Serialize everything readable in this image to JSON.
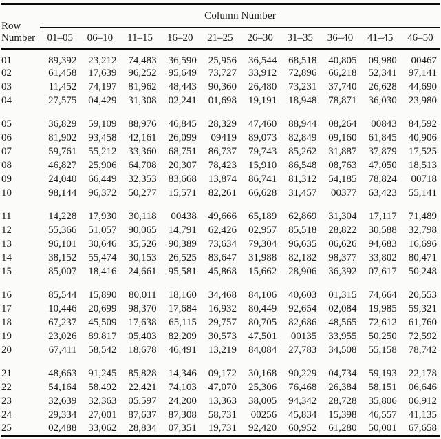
{
  "table": {
    "group_label": "Column Number",
    "row_header_line1": "Row",
    "row_header_line2": "Number",
    "columns": [
      "01–05",
      "06–10",
      "11–15",
      "16–20",
      "21–25",
      "26–30",
      "31–35",
      "36–40",
      "41–45",
      "46–50"
    ],
    "groups": [
      {
        "rows": [
          {
            "row": "01",
            "values": [
              "89,392",
              "23,212",
              "74,483",
              "36,590",
              "25,956",
              "36,544",
              "68,518",
              "40,805",
              "09,980",
              "00467"
            ]
          },
          {
            "row": "02",
            "values": [
              "61,458",
              "17,639",
              "96,252",
              "95,649",
              "73,727",
              "33,912",
              "72,896",
              "66,218",
              "52,341",
              "97,141"
            ]
          },
          {
            "row": "03",
            "values": [
              "11,452",
              "74,197",
              "81,962",
              "48,443",
              "90,360",
              "26,480",
              "73,231",
              "37,740",
              "26,628",
              "44,690"
            ]
          },
          {
            "row": "04",
            "values": [
              "27,575",
              "04,429",
              "31,308",
              "02,241",
              "01,698",
              "19,191",
              "18,948",
              "78,871",
              "36,030",
              "23,980"
            ]
          }
        ]
      },
      {
        "rows": [
          {
            "row": "05",
            "values": [
              "36,829",
              "59,109",
              "88,976",
              "46,845",
              "28,329",
              "47,460",
              "88,944",
              "08,264",
              "00843",
              "84,592"
            ]
          },
          {
            "row": "06",
            "values": [
              "81,902",
              "93,458",
              "42,161",
              "26,099",
              "09419",
              "89,073",
              "82,849",
              "09,160",
              "61,845",
              "40,906"
            ]
          },
          {
            "row": "07",
            "values": [
              "59,761",
              "55,212",
              "33,360",
              "68,751",
              "86,737",
              "79,743",
              "85,262",
              "31,887",
              "37,879",
              "17,525"
            ]
          },
          {
            "row": "08",
            "values": [
              "46,827",
              "25,906",
              "64,708",
              "20,307",
              "78,423",
              "15,910",
              "86,548",
              "08,763",
              "47,050",
              "18,513"
            ]
          },
          {
            "row": "09",
            "values": [
              "24,040",
              "66,449",
              "32,353",
              "83,668",
              "13,874",
              "86,741",
              "81,312",
              "54,185",
              "78,824",
              "00718"
            ]
          },
          {
            "row": "10",
            "values": [
              "98,144",
              "96,372",
              "50,277",
              "15,571",
              "82,261",
              "66,628",
              "31,457",
              "00377",
              "63,423",
              "55,141"
            ]
          }
        ]
      },
      {
        "rows": [
          {
            "row": "11",
            "values": [
              "14,228",
              "17,930",
              "30,118",
              "00438",
              "49,666",
              "65,189",
              "62,869",
              "31,304",
              "17,117",
              "71,489"
            ]
          },
          {
            "row": "12",
            "values": [
              "55,366",
              "51,057",
              "90,065",
              "14,791",
              "62,426",
              "02,957",
              "85,518",
              "28,822",
              "30,588",
              "32,798"
            ]
          },
          {
            "row": "13",
            "values": [
              "96,101",
              "30,646",
              "35,526",
              "90,389",
              "73,634",
              "79,304",
              "96,635",
              "06,626",
              "94,683",
              "16,696"
            ]
          },
          {
            "row": "14",
            "values": [
              "38,152",
              "55,474",
              "30,153",
              "26,525",
              "83,647",
              "31,988",
              "82,182",
              "98,377",
              "33,802",
              "80,471"
            ]
          },
          {
            "row": "15",
            "values": [
              "85,007",
              "18,416",
              "24,661",
              "95,581",
              "45,868",
              "15,662",
              "28,906",
              "36,392",
              "07,617",
              "50,248"
            ]
          }
        ]
      },
      {
        "rows": [
          {
            "row": "16",
            "values": [
              "85,544",
              "15,890",
              "80,011",
              "18,160",
              "34,468",
              "84,106",
              "40,603",
              "01,315",
              "74,664",
              "20,553"
            ]
          },
          {
            "row": "17",
            "values": [
              "10,446",
              "20,699",
              "98,370",
              "17,684",
              "16,932",
              "80,449",
              "92,654",
              "02,084",
              "19,985",
              "59,321"
            ]
          },
          {
            "row": "18",
            "values": [
              "67,237",
              "45,509",
              "17,638",
              "65,115",
              "29,757",
              "80,705",
              "82,686",
              "48,565",
              "72,612",
              "61,760"
            ]
          },
          {
            "row": "19",
            "values": [
              "23,026",
              "89,817",
              "05,403",
              "82,209",
              "30,573",
              "47,501",
              "00135",
              "33,955",
              "50,250",
              "72,592"
            ]
          },
          {
            "row": "20",
            "values": [
              "67,411",
              "58,542",
              "18,678",
              "46,491",
              "13,219",
              "84,084",
              "27,783",
              "34,508",
              "55,158",
              "78,742"
            ]
          }
        ]
      },
      {
        "rows": [
          {
            "row": "21",
            "values": [
              "48,663",
              "91,245",
              "85,828",
              "14,346",
              "09,172",
              "30,168",
              "90,229",
              "04,734",
              "59,193",
              "22,178"
            ]
          },
          {
            "row": "22",
            "values": [
              "54,164",
              "58,492",
              "22,421",
              "74,103",
              "47,070",
              "25,306",
              "76,468",
              "26,384",
              "58,151",
              "06,646"
            ]
          },
          {
            "row": "23",
            "values": [
              "32,639",
              "32,363",
              "05,597",
              "24,200",
              "13,363",
              "38,005",
              "94,342",
              "28,728",
              "35,806",
              "06,912"
            ]
          },
          {
            "row": "24",
            "values": [
              "29,334",
              "27,001",
              "87,637",
              "87,308",
              "58,731",
              "00256",
              "45,834",
              "15,398",
              "46,557",
              "41,135"
            ]
          },
          {
            "row": "25",
            "values": [
              "02,488",
              "33,062",
              "28,834",
              "07,351",
              "19,731",
              "92,420",
              "60,952",
              "61,280",
              "50,001",
              "67,658"
            ]
          }
        ]
      }
    ]
  },
  "colors": {
    "background": "#fbfbfa",
    "text": "#1b1b1b",
    "rule": "#0a0a0a"
  }
}
